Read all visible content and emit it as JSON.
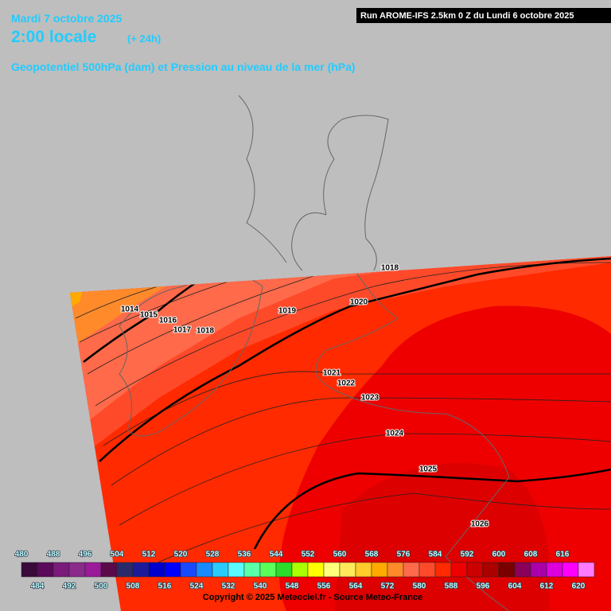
{
  "header": {
    "date": "Mardi 7 octobre 2025",
    "time": "2:00 locale",
    "lead": "(+ 24h)",
    "subtitle": "Geopotentiel 500hPa (dam) et Pression au niveau de la mer (hPa)",
    "run": "Run AROME-IFS 2.5km 0 Z du Lundi 6 octobre 2025"
  },
  "map": {
    "isobar_labels": [
      1014,
      1015,
      1016,
      1017,
      1018,
      1019,
      1018,
      1020,
      1021,
      1022,
      1023,
      1024,
      1025,
      1026
    ]
  },
  "legend": {
    "top_labels": [
      480,
      488,
      496,
      504,
      512,
      520,
      528,
      536,
      544,
      552,
      560,
      568,
      576,
      584,
      592,
      600,
      608,
      616
    ],
    "bottom_labels": [
      484,
      492,
      500,
      508,
      516,
      524,
      532,
      540,
      548,
      556,
      564,
      572,
      580,
      588,
      596,
      604,
      612,
      620
    ],
    "colors": [
      "#3a0a3a",
      "#5a0a5a",
      "#7a1a7a",
      "#8a2a8a",
      "#9a1a9a",
      "#5a0a4a",
      "#2a2a6a",
      "#1a1a9a",
      "#0000cc",
      "#0000ff",
      "#1a4aff",
      "#1a8aff",
      "#2acaff",
      "#5afaff",
      "#5affaa",
      "#5aff5a",
      "#2add2a",
      "#aaff00",
      "#ffff00",
      "#ffff7a",
      "#ffea5a",
      "#ffcc2a",
      "#ffaa00",
      "#ff8a2a",
      "#ff6a4a",
      "#ff4a2a",
      "#ff2a00",
      "#ee0000",
      "#cc0000",
      "#aa0000",
      "#7a0000",
      "#8a005a",
      "#aa00aa",
      "#dd00dd",
      "#ff00ff",
      "#ff7aff"
    ]
  },
  "footer": {
    "copyright": "Copyright © 2025 Meteociel.fr - Source Meteo-France"
  }
}
